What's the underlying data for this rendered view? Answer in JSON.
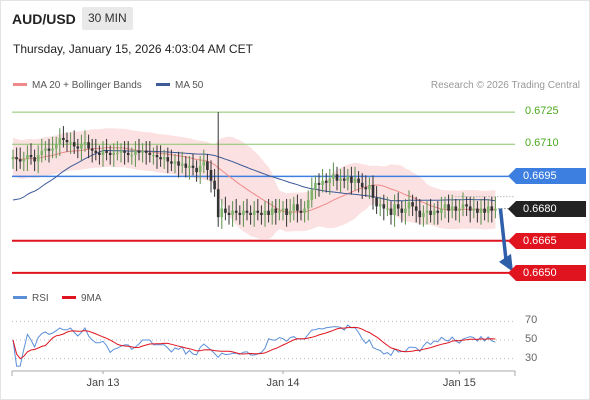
{
  "header": {
    "pair": "AUD/USD",
    "timeframe": "30 MIN",
    "datetime": "Thursday, January 15, 2026 4:03:04 AM CET"
  },
  "legend": {
    "ma_bb": "MA 20 + Bollinger Bands",
    "ma50": "MA 50",
    "rsi": "RSI",
    "ma9": "9MA"
  },
  "credit": "Research © 2026 Trading Central",
  "colors": {
    "ma_bb": "#f08a8a",
    "ma50": "#3d5a99",
    "rsi": "#5b8fd9",
    "ma9": "#e0141e",
    "green": "#8ac46a",
    "blue": "#3d7fe0",
    "red": "#e0141e",
    "bull": "#7fb36b",
    "bear": "#333333",
    "band": "#fbe1e1"
  },
  "chart_data": {
    "type": "candlestick",
    "price_axis": {
      "min": 0.6642,
      "max": 0.6733
    },
    "levels": {
      "green": [
        {
          "value": 0.6725,
          "label": "0.6725"
        },
        {
          "value": 0.671,
          "label": "0.6710"
        }
      ],
      "blue": [
        {
          "value": 0.6695,
          "label": "0.6695"
        }
      ],
      "red": [
        {
          "value": 0.6665,
          "label": "0.6665"
        },
        {
          "value": 0.665,
          "label": "0.6650"
        }
      ],
      "current": {
        "value": 0.668,
        "label": "0.6680"
      }
    },
    "close": [
      0.6704,
      0.6703,
      0.6702,
      0.6703,
      0.6705,
      0.6704,
      0.6702,
      0.6705,
      0.6707,
      0.6708,
      0.6707,
      0.6708,
      0.671,
      0.6713,
      0.6712,
      0.6711,
      0.6711,
      0.6709,
      0.6708,
      0.671,
      0.6711,
      0.6708,
      0.6707,
      0.6706,
      0.6705,
      0.6707,
      0.6706,
      0.6705,
      0.6706,
      0.6706,
      0.6707,
      0.6706,
      0.6705,
      0.6705,
      0.6707,
      0.6706,
      0.6707,
      0.6706,
      0.6705,
      0.6705,
      0.6704,
      0.6703,
      0.6704,
      0.6702,
      0.6701,
      0.6702,
      0.67,
      0.6701,
      0.6699,
      0.67,
      0.6699,
      0.6697,
      0.67,
      0.6702,
      0.6698,
      0.6693,
      0.6689,
      0.6676,
      0.668,
      0.6678,
      0.6677,
      0.6679,
      0.6678,
      0.6677,
      0.6679,
      0.6678,
      0.6677,
      0.6679,
      0.6678,
      0.6677,
      0.6679,
      0.6677,
      0.668,
      0.6678,
      0.6679,
      0.668,
      0.6677,
      0.6679,
      0.6682,
      0.6679,
      0.6678,
      0.668,
      0.6684,
      0.6689,
      0.6692,
      0.6691,
      0.6693,
      0.6692,
      0.6694,
      0.6696,
      0.6693,
      0.6694,
      0.6693,
      0.6695,
      0.6692,
      0.6694,
      0.6692,
      0.669,
      0.6689,
      0.6691,
      0.6685,
      0.6681,
      0.6682,
      0.668,
      0.668,
      0.6677,
      0.6682,
      0.668,
      0.6678,
      0.668,
      0.6683,
      0.6681,
      0.6679,
      0.6676,
      0.6678,
      0.6679,
      0.6677,
      0.6679,
      0.6678,
      0.668,
      0.6682,
      0.6679,
      0.6681,
      0.6679,
      0.668,
      0.6682,
      0.6681,
      0.6679,
      0.668,
      0.6678,
      0.668,
      0.6678,
      0.6681,
      0.6679,
      0.668
    ],
    "spike": {
      "index": 57,
      "high": 0.6725
    },
    "rsi_axis": {
      "min": 20,
      "max": 80,
      "ticks": [
        "70",
        "50",
        "30"
      ],
      "tick_values": [
        70,
        50,
        30
      ]
    },
    "x_ticks": [
      {
        "index": 25,
        "label": "Jan 13"
      },
      {
        "index": 75,
        "label": "Jan 14"
      },
      {
        "index": 124,
        "label": "Jan 15"
      }
    ],
    "forecast": {
      "from": 0.668,
      "to": 0.665
    }
  }
}
